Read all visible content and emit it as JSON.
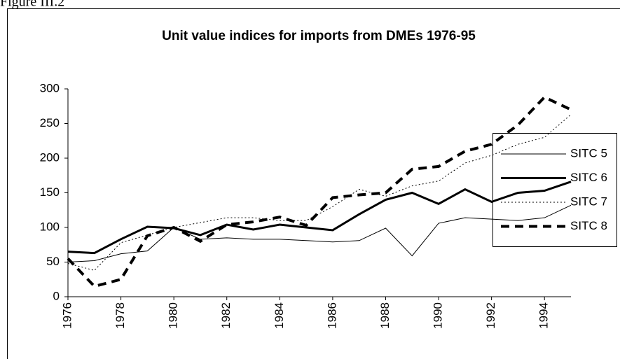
{
  "figure_label": "Figure III.2",
  "chart_data": {
    "type": "line",
    "title": "Unit value indices for imports from DMEs 1976-95",
    "x": [
      1976,
      1977,
      1978,
      1979,
      1980,
      1981,
      1982,
      1983,
      1984,
      1985,
      1986,
      1987,
      1988,
      1989,
      1990,
      1991,
      1992,
      1993,
      1994,
      1995
    ],
    "xlim": [
      1976,
      1995
    ],
    "xticks": [
      1976,
      1978,
      1980,
      1982,
      1984,
      1986,
      1988,
      1990,
      1992,
      1994
    ],
    "ylim": [
      0,
      300
    ],
    "yticks": [
      0,
      50,
      100,
      150,
      200,
      250,
      300
    ],
    "grid": false,
    "legend": "right",
    "series": [
      {
        "name": "SITC 5",
        "color": "#000000",
        "linestyle": "solid",
        "linewidth": 1,
        "values": [
          50,
          52,
          62,
          66,
          100,
          83,
          85,
          83,
          83,
          81,
          79,
          81,
          99,
          59,
          106,
          114,
          112,
          110,
          114,
          132
        ]
      },
      {
        "name": "SITC 6",
        "color": "#000000",
        "linestyle": "solid",
        "linewidth": 3,
        "values": [
          65,
          63,
          83,
          101,
          99,
          89,
          104,
          97,
          104,
          100,
          96,
          119,
          140,
          150,
          134,
          155,
          137,
          150,
          153,
          166
        ]
      },
      {
        "name": "SITC 7",
        "color": "#000000",
        "linestyle": "dotted",
        "linewidth": 1,
        "values": [
          48,
          38,
          78,
          89,
          100,
          107,
          114,
          114,
          110,
          110,
          130,
          155,
          145,
          160,
          167,
          193,
          204,
          220,
          230,
          263
        ]
      },
      {
        "name": "SITC 8",
        "color": "#000000",
        "linestyle": "dashed",
        "linewidth": 4,
        "values": [
          55,
          15,
          25,
          88,
          100,
          80,
          104,
          108,
          115,
          103,
          143,
          147,
          150,
          184,
          188,
          210,
          220,
          248,
          288,
          270
        ]
      }
    ]
  }
}
